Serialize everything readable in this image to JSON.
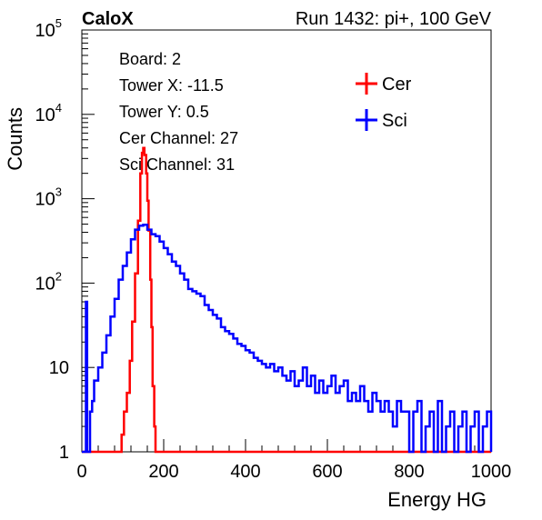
{
  "header": {
    "left_title": "CaloX",
    "right_title": "Run 1432: pi+, 100 GeV"
  },
  "info_box": {
    "lines": [
      "Board: 2",
      "Tower X: -11.5",
      "Tower Y: 0.5",
      "Cer Channel: 27",
      "Sci Channel: 31"
    ]
  },
  "chart_data": {
    "type": "line",
    "title": "",
    "xlabel": "Energy HG",
    "ylabel": "Counts",
    "xlim": [
      0,
      1000
    ],
    "ylim": [
      1,
      100000
    ],
    "y_scale": "log",
    "x_ticks": [
      "0",
      "200",
      "400",
      "600",
      "800",
      "1000"
    ],
    "y_ticks": [
      {
        "base": "1",
        "exp": ""
      },
      {
        "base": "10",
        "exp": ""
      },
      {
        "base": "10",
        "exp": "2"
      },
      {
        "base": "10",
        "exp": "3"
      },
      {
        "base": "10",
        "exp": "4"
      },
      {
        "base": "10",
        "exp": "5"
      }
    ],
    "grid": false,
    "legend_position": "top-right",
    "series": [
      {
        "name": "Cer",
        "color": "#ff0000",
        "points": [
          [
            0,
            1
          ],
          [
            90,
            1
          ],
          [
            97,
            1.6
          ],
          [
            103,
            3
          ],
          [
            110,
            5
          ],
          [
            117,
            12
          ],
          [
            123,
            35
          ],
          [
            130,
            130
          ],
          [
            137,
            550
          ],
          [
            143,
            2000
          ],
          [
            147,
            3500
          ],
          [
            150,
            4000
          ],
          [
            153,
            3300
          ],
          [
            157,
            2000
          ],
          [
            160,
            950
          ],
          [
            163,
            420
          ],
          [
            167,
            110
          ],
          [
            170,
            30
          ],
          [
            173,
            6
          ],
          [
            177,
            2
          ],
          [
            180,
            1
          ],
          [
            1000,
            1
          ]
        ]
      },
      {
        "name": "Sci",
        "color": "#0000ff",
        "points": [
          [
            0,
            1
          ],
          [
            10,
            60
          ],
          [
            13,
            1
          ],
          [
            20,
            3
          ],
          [
            25,
            4
          ],
          [
            30,
            7
          ],
          [
            40,
            10
          ],
          [
            50,
            15
          ],
          [
            60,
            24
          ],
          [
            70,
            40
          ],
          [
            80,
            65
          ],
          [
            90,
            110
          ],
          [
            100,
            160
          ],
          [
            110,
            230
          ],
          [
            120,
            330
          ],
          [
            130,
            430
          ],
          [
            140,
            480
          ],
          [
            150,
            490
          ],
          [
            160,
            430
          ],
          [
            170,
            380
          ],
          [
            180,
            360
          ],
          [
            190,
            310
          ],
          [
            200,
            260
          ],
          [
            210,
            220
          ],
          [
            220,
            180
          ],
          [
            230,
            160
          ],
          [
            240,
            130
          ],
          [
            250,
            110
          ],
          [
            260,
            85
          ],
          [
            270,
            80
          ],
          [
            280,
            75
          ],
          [
            290,
            70
          ],
          [
            300,
            55
          ],
          [
            310,
            48
          ],
          [
            320,
            42
          ],
          [
            330,
            38
          ],
          [
            340,
            30
          ],
          [
            350,
            27
          ],
          [
            360,
            25
          ],
          [
            370,
            22
          ],
          [
            380,
            19
          ],
          [
            390,
            18
          ],
          [
            400,
            16
          ],
          [
            410,
            15
          ],
          [
            420,
            13
          ],
          [
            430,
            12
          ],
          [
            440,
            11
          ],
          [
            450,
            10
          ],
          [
            460,
            11
          ],
          [
            470,
            9
          ],
          [
            480,
            10
          ],
          [
            490,
            8
          ],
          [
            500,
            7
          ],
          [
            510,
            9
          ],
          [
            520,
            6
          ],
          [
            530,
            7
          ],
          [
            540,
            10
          ],
          [
            550,
            6
          ],
          [
            560,
            8
          ],
          [
            570,
            5
          ],
          [
            580,
            7
          ],
          [
            590,
            5
          ],
          [
            600,
            6
          ],
          [
            610,
            8
          ],
          [
            620,
            5
          ],
          [
            630,
            6
          ],
          [
            640,
            7
          ],
          [
            650,
            4
          ],
          [
            660,
            5
          ],
          [
            670,
            4
          ],
          [
            680,
            6
          ],
          [
            690,
            4
          ],
          [
            700,
            3
          ],
          [
            710,
            5
          ],
          [
            720,
            4
          ],
          [
            730,
            3
          ],
          [
            740,
            4
          ],
          [
            750,
            3
          ],
          [
            760,
            2
          ],
          [
            770,
            4
          ],
          [
            780,
            3
          ],
          [
            790,
            3
          ],
          [
            800,
            1
          ],
          [
            810,
            3
          ],
          [
            820,
            4
          ],
          [
            830,
            1
          ],
          [
            840,
            2
          ],
          [
            850,
            3
          ],
          [
            860,
            1
          ],
          [
            870,
            4
          ],
          [
            880,
            1
          ],
          [
            890,
            2
          ],
          [
            900,
            3
          ],
          [
            910,
            1
          ],
          [
            920,
            2
          ],
          [
            930,
            3
          ],
          [
            940,
            1
          ],
          [
            950,
            2
          ],
          [
            960,
            3
          ],
          [
            970,
            1
          ],
          [
            980,
            2
          ],
          [
            990,
            3
          ],
          [
            1000,
            1
          ]
        ]
      }
    ]
  }
}
